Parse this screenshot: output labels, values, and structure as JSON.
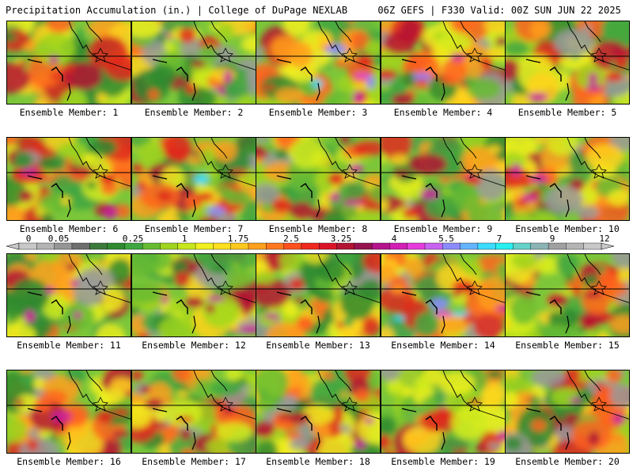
{
  "header": {
    "left": "Precipitation Accumulation (in.) | College of DuPage NEXLAB",
    "right": "06Z GEFS | F330 Valid: 00Z SUN JUN 22 2025"
  },
  "panels": [
    {
      "label": "Ensemble Member: 1",
      "seed": 11,
      "intensity": 0.55
    },
    {
      "label": "Ensemble Member: 2",
      "seed": 23,
      "intensity": 0.35
    },
    {
      "label": "Ensemble Member: 3",
      "seed": 37,
      "intensity": 0.75
    },
    {
      "label": "Ensemble Member: 4",
      "seed": 41,
      "intensity": 0.7
    },
    {
      "label": "Ensemble Member: 5",
      "seed": 53,
      "intensity": 0.55
    },
    {
      "label": "Ensemble Member: 6",
      "seed": 67,
      "intensity": 0.35
    },
    {
      "label": "Ensemble Member: 7",
      "seed": 71,
      "intensity": 0.7
    },
    {
      "label": "Ensemble Member: 8",
      "seed": 83,
      "intensity": 0.6
    },
    {
      "label": "Ensemble Member: 9",
      "seed": 97,
      "intensity": 0.45
    },
    {
      "label": "Ensemble Member: 10",
      "seed": 101,
      "intensity": 0.5
    },
    {
      "label": "Ensemble Member: 11",
      "seed": 113,
      "intensity": 0.3
    },
    {
      "label": "Ensemble Member: 12",
      "seed": 127,
      "intensity": 0.55
    },
    {
      "label": "Ensemble Member: 13",
      "seed": 131,
      "intensity": 0.25
    },
    {
      "label": "Ensemble Member: 14",
      "seed": 149,
      "intensity": 0.8
    },
    {
      "label": "Ensemble Member: 15",
      "seed": 151,
      "intensity": 0.35
    },
    {
      "label": "Ensemble Member: 16",
      "seed": 163,
      "intensity": 0.65
    },
    {
      "label": "Ensemble Member: 17",
      "seed": 173,
      "intensity": 0.45
    },
    {
      "label": "Ensemble Member: 18",
      "seed": 181,
      "intensity": 0.6
    },
    {
      "label": "Ensemble Member: 19",
      "seed": 191,
      "intensity": 0.4
    },
    {
      "label": "Ensemble Member: 20",
      "seed": 199,
      "intensity": 0.6
    }
  ],
  "colorbar": {
    "ticks": [
      "0",
      "0.05",
      "0.25",
      "1",
      "1.75",
      "2.5",
      "3.25",
      "4",
      "5.5",
      "7",
      "9",
      "12"
    ],
    "colors": [
      "#c8c8c8",
      "#b4b4b4",
      "#969696",
      "#6e6e6e",
      "#3c7a3c",
      "#2f8a2f",
      "#3fa63f",
      "#66bb33",
      "#9fd41f",
      "#c8e61e",
      "#f0f01e",
      "#ffe01e",
      "#ffc81e",
      "#ffa01e",
      "#ff781e",
      "#ff501e",
      "#f0281e",
      "#dc1428",
      "#b41432",
      "#961450",
      "#b4148c",
      "#d21eb4",
      "#e63cdc",
      "#c864f0",
      "#8c8cff",
      "#64b4ff",
      "#3cdcff",
      "#28f0f0",
      "#64d2c8",
      "#8cb4b4",
      "#a0a0a0",
      "#b4b4b4",
      "#c8c8c8"
    ]
  }
}
